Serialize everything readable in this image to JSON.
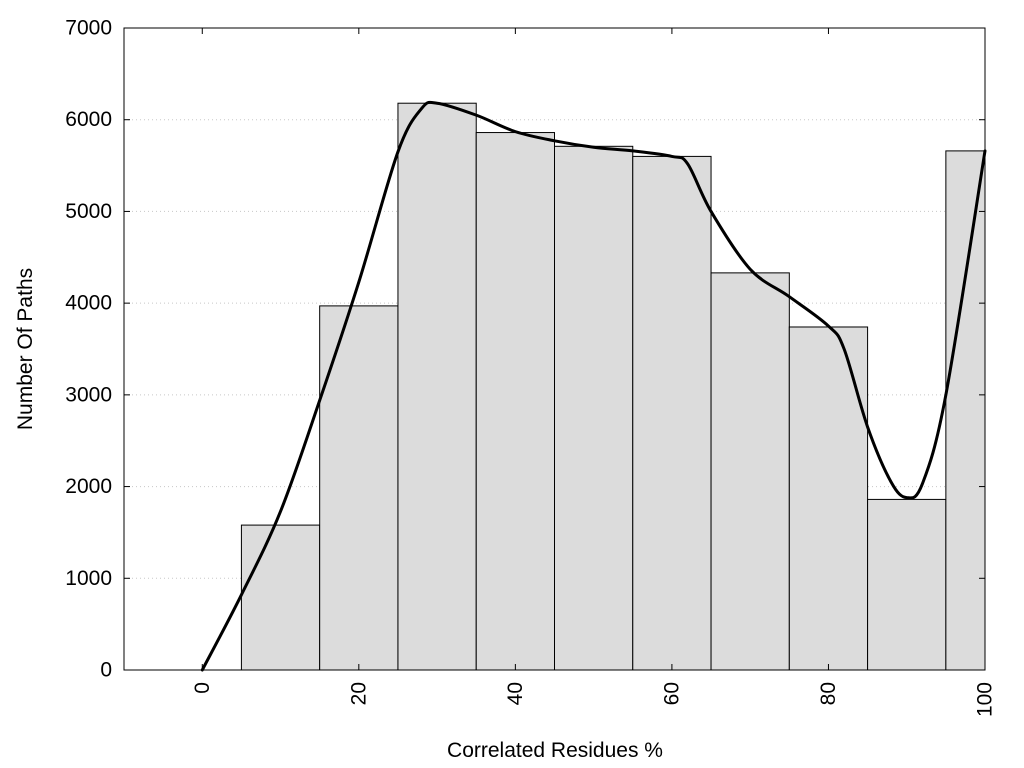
{
  "chart_data": {
    "type": "bar",
    "title": "",
    "xlabel": "Correlated Residues %",
    "ylabel": "Number Of Paths",
    "xlim": [
      -10,
      100
    ],
    "ylim": [
      0,
      7000
    ],
    "x_ticks": [
      0,
      20,
      40,
      60,
      80,
      100
    ],
    "y_ticks": [
      0,
      1000,
      2000,
      3000,
      4000,
      5000,
      6000,
      7000
    ],
    "grid": "horizontal dotted",
    "legend": "none",
    "bin_width": 10,
    "categories": [
      10,
      20,
      30,
      40,
      50,
      60,
      70,
      80,
      90,
      100
    ],
    "values": [
      1580,
      3970,
      6180,
      5860,
      5710,
      5600,
      4330,
      3740,
      1860,
      5660
    ],
    "smooth_curve": {
      "x": [
        0,
        5,
        10,
        15,
        20,
        25,
        28,
        30,
        35,
        40,
        45,
        50,
        55,
        60,
        62,
        65,
        70,
        75,
        80,
        82,
        85,
        88,
        90,
        92,
        95,
        100
      ],
      "y": [
        0,
        820,
        1730,
        2940,
        4230,
        5650,
        6120,
        6180,
        6050,
        5870,
        5770,
        5700,
        5660,
        5600,
        5520,
        5000,
        4370,
        4070,
        3750,
        3500,
        2650,
        2050,
        1880,
        2030,
        3000,
        5660
      ]
    },
    "colors": {
      "bar_fill": "#dcdcdc",
      "bar_stroke": "#000000",
      "curve": "#000000",
      "grid": "#c8c8c8"
    }
  }
}
